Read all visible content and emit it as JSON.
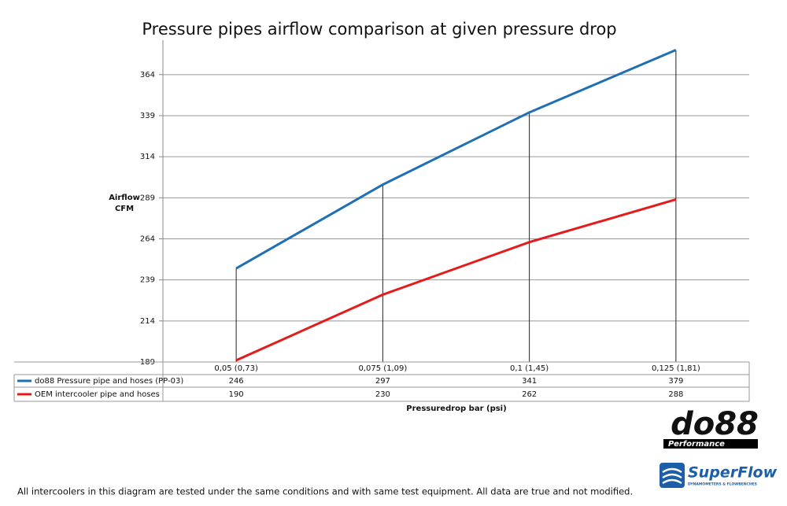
{
  "chart_data": {
    "type": "line",
    "title": "Pressure pipes airflow comparison at given pressure drop",
    "ylabel_lines": [
      "Airflow",
      "CFM"
    ],
    "xlabel": "Pressuredrop bar (psi)",
    "categories": [
      "0,05 (0,73)",
      "0,075 (1,09)",
      "0,1 (1,45)",
      "0,125 (1,81)"
    ],
    "series": [
      {
        "name": "do88 Pressure pipe and hoses (PP-03)",
        "color": "#1f6fb5",
        "values": [
          246,
          297,
          341,
          379
        ]
      },
      {
        "name": "OEM intercooler pipe and hoses",
        "color": "#e31b1b",
        "values": [
          190,
          230,
          262,
          288
        ]
      }
    ],
    "ylim": [
      189,
      385
    ],
    "yticks": [
      189,
      214,
      239,
      264,
      289,
      314,
      339,
      364
    ],
    "grid": true
  },
  "footer": "All intercoolers in this diagram are tested under the same conditions and with same test equipment. All data are true and not modified.",
  "logos": {
    "do88": "do88",
    "do88_sub": "Performance",
    "superflow": "SuperFlow",
    "superflow_sub": "DYNAMOMETERS & FLOWBENCHES"
  }
}
